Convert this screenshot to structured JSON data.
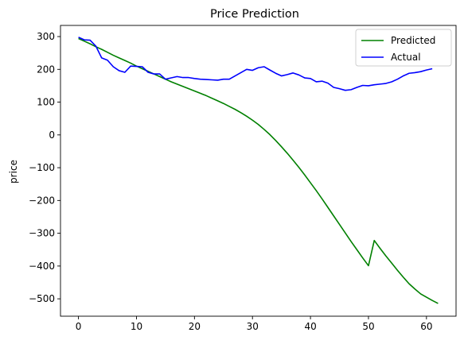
{
  "chart_data": {
    "type": "line",
    "title": "Price Prediction",
    "xlabel": "",
    "ylabel": "price",
    "xlim": [
      -3.1,
      65.1
    ],
    "ylim": [
      -553,
      334
    ],
    "x_ticks": [
      0,
      10,
      20,
      30,
      40,
      50,
      60
    ],
    "y_ticks": [
      300,
      200,
      100,
      0,
      -100,
      -200,
      -300,
      -400,
      -500
    ],
    "y_tick_labels": [
      "300",
      "200",
      "100",
      "0",
      "−100",
      "−200",
      "−300",
      "−400",
      "−500"
    ],
    "grid": false,
    "legend_position": "top-right",
    "series": [
      {
        "name": "Predicted",
        "color": "#008000",
        "x": [
          0,
          1,
          2,
          3,
          4,
          5,
          6,
          7,
          8,
          9,
          10,
          11,
          12,
          13,
          14,
          15,
          16,
          17,
          18,
          19,
          20,
          21,
          22,
          23,
          24,
          25,
          26,
          27,
          28,
          29,
          30,
          31,
          32,
          33,
          34,
          35,
          36,
          37,
          38,
          39,
          40,
          41,
          42,
          43,
          44,
          45,
          46,
          47,
          48,
          49,
          50,
          51,
          52,
          53,
          54,
          55,
          56,
          57,
          58,
          59,
          60,
          61,
          62
        ],
        "y": [
          294,
          286,
          278,
          269,
          261,
          252,
          243,
          235,
          227,
          219,
          210,
          202,
          194,
          186,
          178,
          170,
          162,
          155,
          148,
          141,
          134,
          127,
          120,
          112,
          104,
          96,
          87,
          78,
          68,
          57,
          45,
          32,
          17,
          1,
          -17,
          -36,
          -56,
          -77,
          -99,
          -122,
          -146,
          -170,
          -195,
          -221,
          -247,
          -273,
          -299,
          -325,
          -350,
          -375,
          -399,
          -322,
          -346,
          -369,
          -391,
          -413,
          -434,
          -454,
          -470,
          -485,
          -495,
          -505,
          -514
        ]
      },
      {
        "name": "Actual",
        "color": "#0000ff",
        "x": [
          0,
          1,
          2,
          3,
          4,
          5,
          6,
          7,
          8,
          9,
          10,
          11,
          12,
          13,
          14,
          15,
          16,
          17,
          18,
          19,
          20,
          21,
          22,
          23,
          24,
          25,
          26,
          27,
          28,
          29,
          30,
          31,
          32,
          33,
          34,
          35,
          36,
          37,
          38,
          39,
          40,
          41,
          42,
          43,
          44,
          45,
          46,
          47,
          48,
          49,
          50,
          51,
          52,
          53,
          54,
          55,
          56,
          57,
          58,
          59,
          60,
          61
        ],
        "y": [
          298,
          290,
          289,
          271,
          235,
          228,
          208,
          196,
          191,
          210,
          209,
          208,
          191,
          186,
          186,
          170,
          174,
          178,
          175,
          175,
          172,
          170,
          169,
          168,
          167,
          170,
          170,
          180,
          190,
          200,
          197,
          205,
          208,
          198,
          188,
          180,
          184,
          189,
          183,
          174,
          172,
          162,
          164,
          158,
          145,
          141,
          136,
          138,
          145,
          151,
          150,
          153,
          155,
          157,
          162,
          170,
          180,
          188,
          190,
          193,
          198,
          202
        ]
      }
    ]
  }
}
